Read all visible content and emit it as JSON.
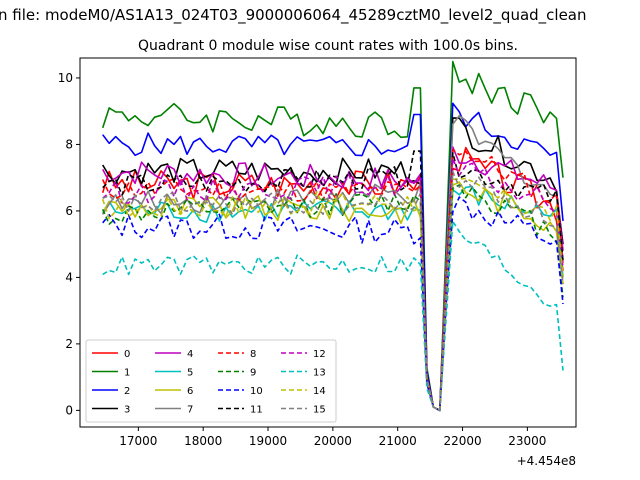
{
  "chart_data": {
    "type": "line",
    "suptitle": "n file: modeM0/AS1A13_024T03_9000006064_45289cztM0_level2_quad_clean",
    "title": "Quadrant 0 module wise count rates with 100.0s bins.",
    "xlabel": "",
    "ylabel": "",
    "x_offset_label": "+4.454e8",
    "xlim": [
      16100,
      23750
    ],
    "ylim": [
      -0.5,
      10.6
    ],
    "x_ticks": [
      17000,
      18000,
      19000,
      20000,
      21000,
      22000,
      23000
    ],
    "x_tick_labels": [
      "17000",
      "18000",
      "19000",
      "20000",
      "21000",
      "22000",
      "23000"
    ],
    "y_ticks": [
      0,
      2,
      4,
      6,
      8,
      10
    ],
    "y_tick_labels": [
      "0",
      "2",
      "4",
      "6",
      "8",
      "10"
    ],
    "grid": false,
    "legend_position": "lower-left",
    "x_start": 16450,
    "x_step": 100,
    "series": [
      {
        "name": "0",
        "color": "#ff0000",
        "dash": "solid",
        "base": 6.8,
        "amp": 0.45,
        "early": 6.8,
        "late": 7.7,
        "lateEnd": 6.0
      },
      {
        "name": "1",
        "color": "#008000",
        "dash": "solid",
        "base": 8.6,
        "amp": 0.45,
        "early": 9.1,
        "late": 10.1,
        "lateEnd": 8.8,
        "preDip": 9.7
      },
      {
        "name": "2",
        "color": "#0000ff",
        "dash": "solid",
        "base": 7.9,
        "amp": 0.35,
        "early": 8.1,
        "late": 9.0,
        "lateEnd": 7.5,
        "preDip": 8.9
      },
      {
        "name": "3",
        "color": "#000000",
        "dash": "solid",
        "base": 7.2,
        "amp": 0.4,
        "early": 7.2,
        "late": 8.6,
        "lateEnd": 6.8
      },
      {
        "name": "4",
        "color": "#bf00bf",
        "dash": "solid",
        "base": 6.9,
        "amp": 0.4,
        "early": 7.4,
        "late": 7.8,
        "lateEnd": 6.6
      },
      {
        "name": "5",
        "color": "#00bfbf",
        "dash": "solid",
        "base": 6.0,
        "amp": 0.35,
        "early": 6.0,
        "late": 6.6,
        "lateEnd": 5.8
      },
      {
        "name": "6",
        "color": "#bfbf00",
        "dash": "solid",
        "base": 6.0,
        "amp": 0.4,
        "early": 6.2,
        "late": 6.8,
        "lateEnd": 5.6
      },
      {
        "name": "7",
        "color": "#808080",
        "dash": "solid",
        "base": 6.5,
        "amp": 0.35,
        "early": 6.0,
        "late": 8.7,
        "lateEnd": 6.3
      },
      {
        "name": "8",
        "color": "#ff0000",
        "dash": "dashed",
        "base": 6.6,
        "amp": 0.35,
        "early": 6.7,
        "late": 8.0,
        "lateEnd": 6.2
      },
      {
        "name": "9",
        "color": "#008000",
        "dash": "dashed",
        "base": 6.3,
        "amp": 0.35,
        "early": 5.6,
        "late": 6.9,
        "lateEnd": 5.2
      },
      {
        "name": "10",
        "color": "#0000ff",
        "dash": "dashed",
        "base": 5.4,
        "amp": 0.4,
        "early": 5.7,
        "late": 6.3,
        "lateEnd": 5.0
      },
      {
        "name": "11",
        "color": "#000000",
        "dash": "dashed",
        "base": 7.0,
        "amp": 0.35,
        "early": 6.6,
        "late": 7.4,
        "lateEnd": 6.3,
        "preDip": 7.8
      },
      {
        "name": "12",
        "color": "#bf00bf",
        "dash": "dashed",
        "base": 6.8,
        "amp": 0.35,
        "early": 6.4,
        "late": 7.3,
        "lateEnd": 6.1
      },
      {
        "name": "13",
        "color": "#00bfbf",
        "dash": "dashed",
        "base": 4.4,
        "amp": 0.3,
        "early": 4.3,
        "late": 5.5,
        "lateEnd": 3.0
      },
      {
        "name": "14",
        "color": "#bfbf00",
        "dash": "dashed",
        "base": 6.3,
        "amp": 0.35,
        "early": 5.9,
        "late": 6.8,
        "lateEnd": 5.8
      },
      {
        "name": "15",
        "color": "#808080",
        "dash": "dashed",
        "base": 6.2,
        "amp": 0.35,
        "early": 6.2,
        "late": 7.1,
        "lateEnd": 5.6
      }
    ]
  }
}
